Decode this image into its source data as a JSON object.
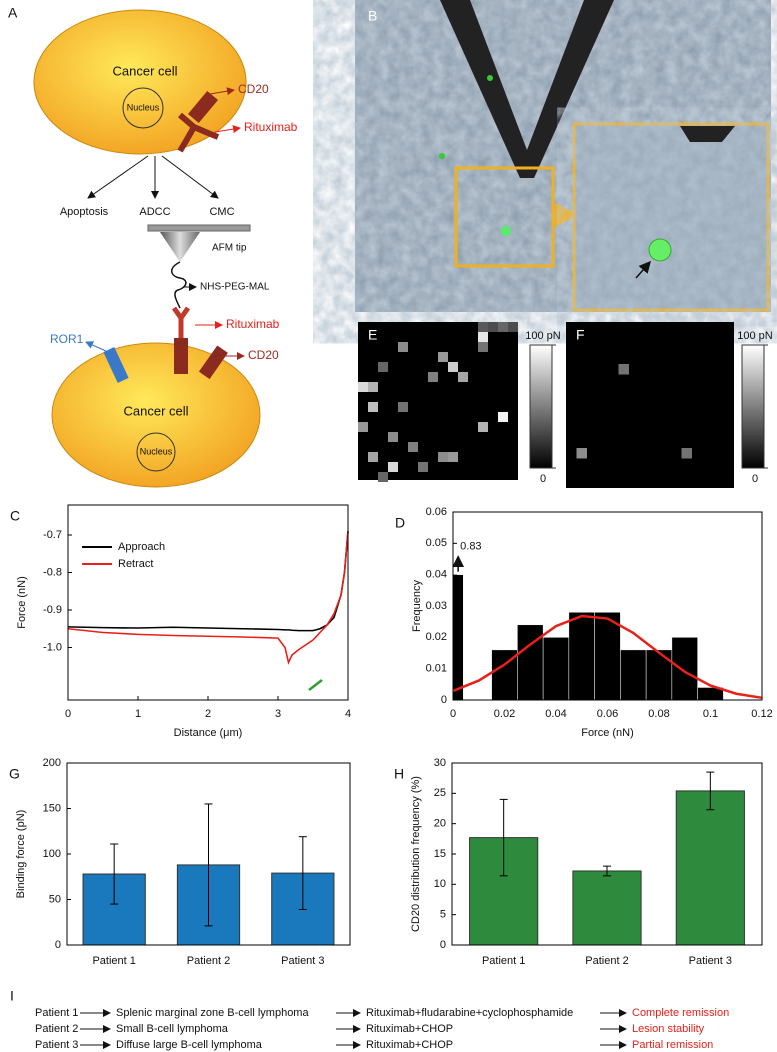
{
  "diagram": {
    "panel": "A",
    "top_cell": "Cancer cell",
    "top_nucleus": "Nucleus",
    "top_cd20": "CD20",
    "top_rituximab": "Rituximab",
    "outcomes": [
      "Apoptosis",
      "ADCC",
      "CMC"
    ],
    "tip": "AFM tip",
    "linker": "NHS-PEG-MAL",
    "tip_rituximab": "Rituximab",
    "ror1": "ROR1",
    "bottom_cd20": "CD20",
    "bottom_cell": "Cancer cell",
    "bottom_nucleus": "Nucleus"
  },
  "micrograph": {
    "panel": "B"
  },
  "force_maps": [
    {
      "panel": "E",
      "range": [
        0,
        100
      ],
      "ticks": [
        {
          "value": 100,
          "label": "100 pN"
        },
        0
      ],
      "cells": [
        {
          "row": 0,
          "col": 12,
          "value": 35
        },
        {
          "row": 0,
          "col": 13,
          "value": 30
        },
        {
          "row": 0,
          "col": 14,
          "value": 40
        },
        {
          "row": 0,
          "col": 15,
          "value": 30
        },
        {
          "row": 1,
          "col": 12,
          "value": 90
        },
        {
          "row": 2,
          "col": 4,
          "value": 55
        },
        {
          "row": 2,
          "col": 12,
          "value": 45
        },
        {
          "row": 3,
          "col": 8,
          "value": 60
        },
        {
          "row": 4,
          "col": 2,
          "value": 40
        },
        {
          "row": 4,
          "col": 9,
          "value": 80
        },
        {
          "row": 5,
          "col": 10,
          "value": 65
        },
        {
          "row": 5,
          "col": 7,
          "value": 50
        },
        {
          "row": 6,
          "col": 0,
          "value": 85
        },
        {
          "row": 6,
          "col": 1,
          "value": 70
        },
        {
          "row": 8,
          "col": 1,
          "value": 75
        },
        {
          "row": 8,
          "col": 4,
          "value": 45
        },
        {
          "row": 9,
          "col": 14,
          "value": 95
        },
        {
          "row": 10,
          "col": 0,
          "value": 60
        },
        {
          "row": 10,
          "col": 12,
          "value": 70
        },
        {
          "row": 11,
          "col": 3,
          "value": 55
        },
        {
          "row": 12,
          "col": 5,
          "value": 50
        },
        {
          "row": 13,
          "col": 1,
          "value": 65
        },
        {
          "row": 13,
          "col": 8,
          "value": 55
        },
        {
          "row": 13,
          "col": 9,
          "value": 60
        },
        {
          "row": 14,
          "col": 3,
          "value": 85
        },
        {
          "row": 14,
          "col": 6,
          "value": 45
        },
        {
          "row": 15,
          "col": 2,
          "value": 40
        }
      ]
    },
    {
      "panel": "F",
      "range": [
        0,
        100
      ],
      "ticks": [
        {
          "value": 100,
          "label": "100 pN"
        },
        0
      ],
      "cells": [
        {
          "row": 4,
          "col": 5,
          "value": 45
        },
        {
          "row": 12,
          "col": 1,
          "value": 55
        },
        {
          "row": 12,
          "col": 11,
          "value": 45
        }
      ]
    }
  ],
  "chart_data": [
    {
      "panel": "C",
      "type": "line",
      "xlabel": "Distance (μm)",
      "ylabel": "Force (nN)",
      "x": [
        0,
        0.5,
        1,
        1.5,
        2,
        2.5,
        3,
        3.1,
        3.15,
        3.2,
        3.3,
        3.5,
        3.6,
        3.7,
        3.8,
        3.9,
        3.95,
        4
      ],
      "series": [
        {
          "name": "Approach",
          "color": "#000000",
          "values": [
            -0.945,
            -0.947,
            -0.948,
            -0.946,
            -0.948,
            -0.95,
            -0.952,
            -0.953,
            -0.953,
            -0.954,
            -0.955,
            -0.955,
            -0.95,
            -0.94,
            -0.92,
            -0.86,
            -0.8,
            -0.69
          ]
        },
        {
          "name": "Retract",
          "color": "#e8201a",
          "values": [
            -0.95,
            -0.96,
            -0.965,
            -0.968,
            -0.97,
            -0.972,
            -0.975,
            -1.0,
            -1.04,
            -1.02,
            -1.005,
            -0.98,
            -0.96,
            -0.94,
            -0.91,
            -0.86,
            -0.8,
            -0.69
          ]
        }
      ],
      "xlim": [
        0,
        4
      ],
      "xticks": [
        0,
        1,
        2,
        3,
        4
      ],
      "ylim": [
        -1.14,
        -0.62
      ],
      "yticks": [
        {
          "value": -1,
          "label": "-1.0"
        },
        -0.9,
        -0.8,
        -0.7
      ]
    },
    {
      "panel": "D",
      "type": "histogram",
      "xlabel": "Force (nN)",
      "ylabel": "Frequency",
      "color": "#000000",
      "bins": [
        0,
        0.004,
        0.015,
        0.025,
        0.035,
        0.045,
        0.055,
        0.065,
        0.075,
        0.085,
        0.095,
        0.105
      ],
      "values": [
        0.04,
        0,
        0.016,
        0.024,
        0.02,
        0.028,
        0.028,
        0.016,
        0.016,
        0.02,
        0.004
      ],
      "annotation": "0.83",
      "curve": {
        "color": "#e8201a",
        "x": [
          0,
          0.01,
          0.02,
          0.03,
          0.04,
          0.05,
          0.06,
          0.07,
          0.08,
          0.09,
          0.1,
          0.11,
          0.12
        ],
        "values": [
          0.0029,
          0.0062,
          0.0113,
          0.0177,
          0.0236,
          0.0268,
          0.026,
          0.0214,
          0.0151,
          0.009,
          0.0046,
          0.002,
          0.0007
        ]
      },
      "xlim": [
        0,
        0.12
      ],
      "xticks": [
        0,
        0.02,
        0.04,
        0.06,
        0.08,
        0.1,
        0.12
      ],
      "ylim": [
        0,
        0.06
      ],
      "yticks": [
        0,
        0.01,
        0.02,
        0.03,
        0.04,
        0.05,
        0.06
      ]
    },
    {
      "panel": "G",
      "type": "bar",
      "ylabel": "Binding force (pN)",
      "color": "#1a78bd",
      "categories": [
        "Patient 1",
        "Patient 2",
        "Patient 3"
      ],
      "values": [
        78,
        88,
        79
      ],
      "errors": [
        33,
        67,
        40
      ],
      "ylim": [
        0,
        200
      ],
      "yticks": [
        0,
        50,
        100,
        150,
        200
      ]
    },
    {
      "panel": "H",
      "type": "bar",
      "ylabel": "CD20 distribution frequency (%)",
      "color": "#2e8b3e",
      "categories": [
        "Patient 1",
        "Patient 2",
        "Patient 3"
      ],
      "values": [
        17.7,
        12.2,
        25.4
      ],
      "errors": [
        6.3,
        0.8,
        3.1
      ],
      "ylim": [
        0,
        30
      ],
      "yticks": [
        0,
        5,
        10,
        15,
        20,
        25,
        30
      ]
    }
  ],
  "table": {
    "panel": "I",
    "rows": [
      [
        "Patient 1",
        "Splenic marginal zone B-cell lymphoma",
        "Rituximab+fludarabine+cyclophosphamide",
        "Complete remission"
      ],
      [
        "Patient 2",
        "Small B-cell lymphoma",
        "Rituximab+CHOP",
        "Lesion stability"
      ],
      [
        "Patient 3",
        "Diffuse large B-cell lymphoma",
        "Rituximab+CHOP",
        "Partial remission"
      ]
    ]
  }
}
